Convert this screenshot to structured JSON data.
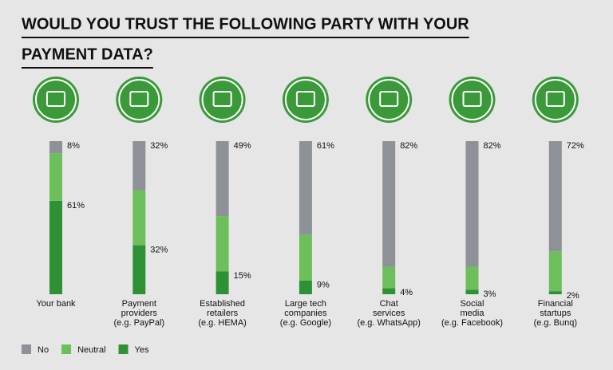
{
  "chart_data": {
    "type": "stacked-bar",
    "title": [
      "WOULD YOU TRUST THE FOLLOWING PARTY WITH YOUR",
      "PAYMENT DATA?"
    ],
    "categories": [
      [
        "Your bank"
      ],
      [
        "Payment",
        "providers",
        "(e.g. PayPal)"
      ],
      [
        "Established",
        "retailers",
        "(e.g. HEMA)"
      ],
      [
        "Large tech",
        "companies",
        "(e.g. Google)"
      ],
      [
        "Chat",
        "services",
        "(e.g. WhatsApp)"
      ],
      [
        "Social",
        "media",
        "(e.g. Facebook)"
      ],
      [
        "Financial",
        "startups",
        "(e.g. Bunq)"
      ]
    ],
    "series": [
      {
        "name": "No",
        "color": "#8e9197",
        "values": [
          8,
          32,
          49,
          61,
          82,
          82,
          72
        ],
        "value_labels": [
          "8%",
          "32%",
          "49%",
          "61%",
          "82%",
          "82%",
          "72%"
        ]
      },
      {
        "name": "Neutral",
        "color": "#6cbf5b",
        "values": [
          31,
          36,
          36,
          30,
          14,
          15,
          26
        ]
      },
      {
        "name": "Yes",
        "color": "#2e9136",
        "values": [
          61,
          32,
          15,
          9,
          4,
          3,
          2
        ],
        "value_labels": [
          "61%",
          "32%",
          "15%",
          "9%",
          "4%",
          "3%",
          "2%"
        ]
      }
    ]
  }
}
